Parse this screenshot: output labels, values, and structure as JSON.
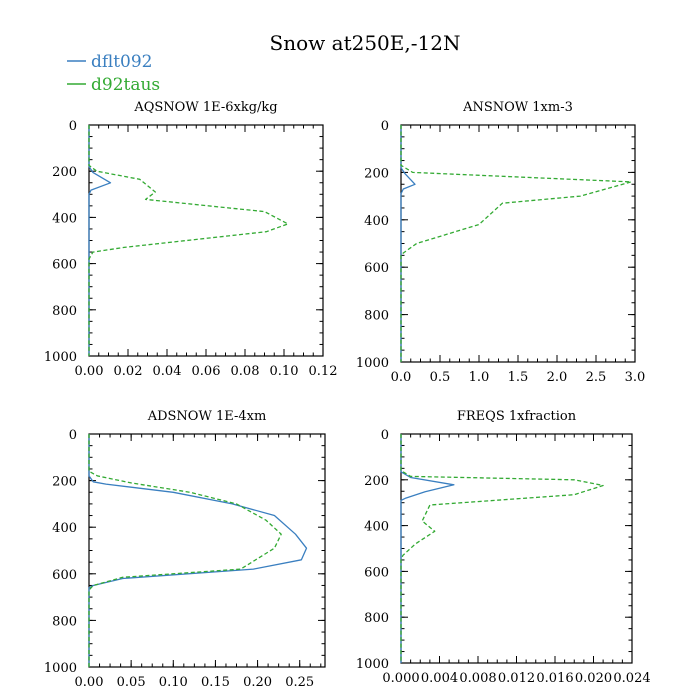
{
  "title": "Snow at250E,-12N",
  "legend": [
    {
      "name": "dflt092",
      "color": "#3a7fc0",
      "style": "solid"
    },
    {
      "name": "d92taus",
      "color": "#33aa33",
      "style": "dashed"
    }
  ],
  "chart_data": [
    {
      "type": "line",
      "title": "AQSNOW  1E-6xkg/kg",
      "xlim": [
        0,
        0.12
      ],
      "xticks": [
        0.0,
        0.02,
        0.04,
        0.06,
        0.08,
        0.1,
        0.12
      ],
      "xticklabels": [
        "0.00",
        "0.02",
        "0.04",
        "0.06",
        "0.08",
        "0.10",
        "0.12"
      ],
      "ylim": [
        0,
        1000
      ],
      "yticks": [
        0,
        200,
        400,
        600,
        800,
        1000
      ],
      "yticklabels": [
        "0",
        "200",
        "400",
        "600",
        "800",
        "1000"
      ],
      "yinverted": true,
      "series": [
        {
          "name": "dflt092",
          "points": [
            [
              0,
              0
            ],
            [
              0,
              180
            ],
            [
              0.002,
              205
            ],
            [
              0.011,
              250
            ],
            [
              0.001,
              282
            ],
            [
              0,
              300
            ],
            [
              0,
              1000
            ]
          ]
        },
        {
          "name": "d92taus",
          "points": [
            [
              0,
              0
            ],
            [
              0,
              175
            ],
            [
              0.004,
              200
            ],
            [
              0.026,
              235
            ],
            [
              0.034,
              290
            ],
            [
              0.029,
              322
            ],
            [
              0.09,
              375
            ],
            [
              0.102,
              428
            ],
            [
              0.091,
              462
            ],
            [
              0.018,
              530
            ],
            [
              0.002,
              550
            ],
            [
              0,
              580
            ],
            [
              0,
              1000
            ]
          ]
        }
      ]
    },
    {
      "type": "line",
      "title": "ANSNOW  1xm-3",
      "xlim": [
        0,
        3.0
      ],
      "xticks": [
        0,
        0.5,
        1.0,
        1.5,
        2.0,
        2.5,
        3.0
      ],
      "xticklabels": [
        "0.0",
        "0.5",
        "1.0",
        "1.5",
        "2.0",
        "2.5",
        "3.0"
      ],
      "ylim": [
        0,
        1000
      ],
      "yticks": [
        0,
        200,
        400,
        600,
        800,
        1000
      ],
      "yticklabels": [
        "0",
        "200",
        "400",
        "600",
        "800",
        "1000"
      ],
      "yinverted": true,
      "series": [
        {
          "name": "dflt092",
          "points": [
            [
              0,
              0
            ],
            [
              0,
              180
            ],
            [
              0.05,
              205
            ],
            [
              0.18,
              250
            ],
            [
              0.03,
              270
            ],
            [
              0,
              290
            ],
            [
              0,
              1000
            ]
          ]
        },
        {
          "name": "d92taus",
          "points": [
            [
              0,
              0
            ],
            [
              0,
              170
            ],
            [
              0.15,
              200
            ],
            [
              2.95,
              240
            ],
            [
              2.3,
              300
            ],
            [
              1.3,
              330
            ],
            [
              1.0,
              420
            ],
            [
              0.2,
              500
            ],
            [
              0.03,
              540
            ],
            [
              0,
              550
            ],
            [
              0,
              1000
            ]
          ]
        }
      ]
    },
    {
      "type": "line",
      "title": "ADSNOW  1E-4xm",
      "xlim": [
        0,
        0.28
      ],
      "xticks": [
        0.0,
        0.05,
        0.1,
        0.15,
        0.2,
        0.25
      ],
      "xticklabels": [
        "0.00",
        "0.05",
        "0.10",
        "0.15",
        "0.20",
        "0.25"
      ],
      "ylim": [
        0,
        1000
      ],
      "yticks": [
        0,
        200,
        400,
        600,
        800,
        1000
      ],
      "yticklabels": [
        "0",
        "200",
        "400",
        "600",
        "800",
        "1000"
      ],
      "yinverted": true,
      "series": [
        {
          "name": "dflt092",
          "points": [
            [
              0,
              0
            ],
            [
              0,
              180
            ],
            [
              0.005,
              205
            ],
            [
              0.02,
              215
            ],
            [
              0.1,
              250
            ],
            [
              0.17,
              300
            ],
            [
              0.22,
              350
            ],
            [
              0.245,
              430
            ],
            [
              0.258,
              490
            ],
            [
              0.252,
              540
            ],
            [
              0.195,
              580
            ],
            [
              0.04,
              620
            ],
            [
              0.005,
              650
            ],
            [
              0,
              660
            ],
            [
              0,
              1000
            ]
          ]
        },
        {
          "name": "d92taus",
          "points": [
            [
              0,
              0
            ],
            [
              0,
              160
            ],
            [
              0.01,
              180
            ],
            [
              0.05,
              210
            ],
            [
              0.12,
              250
            ],
            [
              0.175,
              300
            ],
            [
              0.21,
              370
            ],
            [
              0.228,
              430
            ],
            [
              0.22,
              490
            ],
            [
              0.18,
              580
            ],
            [
              0.04,
              615
            ],
            [
              0.005,
              650
            ],
            [
              0,
              670
            ],
            [
              0,
              1000
            ]
          ]
        }
      ]
    },
    {
      "type": "line",
      "title": "FREQS  1xfraction",
      "xlim": [
        0,
        0.024
      ],
      "xticks": [
        0,
        0.004,
        0.008,
        0.012,
        0.016,
        0.02,
        0.024
      ],
      "xticklabels": [
        "0.000",
        "0.004",
        "0.008",
        "0.012",
        "0.016",
        "0.020",
        "0.024"
      ],
      "ylim": [
        0,
        1000
      ],
      "yticks": [
        0,
        200,
        400,
        600,
        800,
        1000
      ],
      "yticklabels": [
        "0",
        "200",
        "400",
        "600",
        "800",
        "1000"
      ],
      "yinverted": true,
      "series": [
        {
          "name": "dflt092",
          "points": [
            [
              0,
              0
            ],
            [
              0,
              165
            ],
            [
              0.001,
              190
            ],
            [
              0.0055,
              222
            ],
            [
              0.0025,
              252
            ],
            [
              0.0005,
              280
            ],
            [
              0,
              290
            ],
            [
              0,
              1000
            ]
          ]
        },
        {
          "name": "d92taus",
          "points": [
            [
              0,
              0
            ],
            [
              0,
              160
            ],
            [
              0.001,
              185
            ],
            [
              0.018,
              200
            ],
            [
              0.021,
              225
            ],
            [
              0.018,
              265
            ],
            [
              0.003,
              310
            ],
            [
              0.0022,
              380
            ],
            [
              0.0035,
              425
            ],
            [
              0.0015,
              480
            ],
            [
              0.0002,
              530
            ],
            [
              0,
              550
            ],
            [
              0,
              1000
            ]
          ]
        }
      ]
    }
  ]
}
